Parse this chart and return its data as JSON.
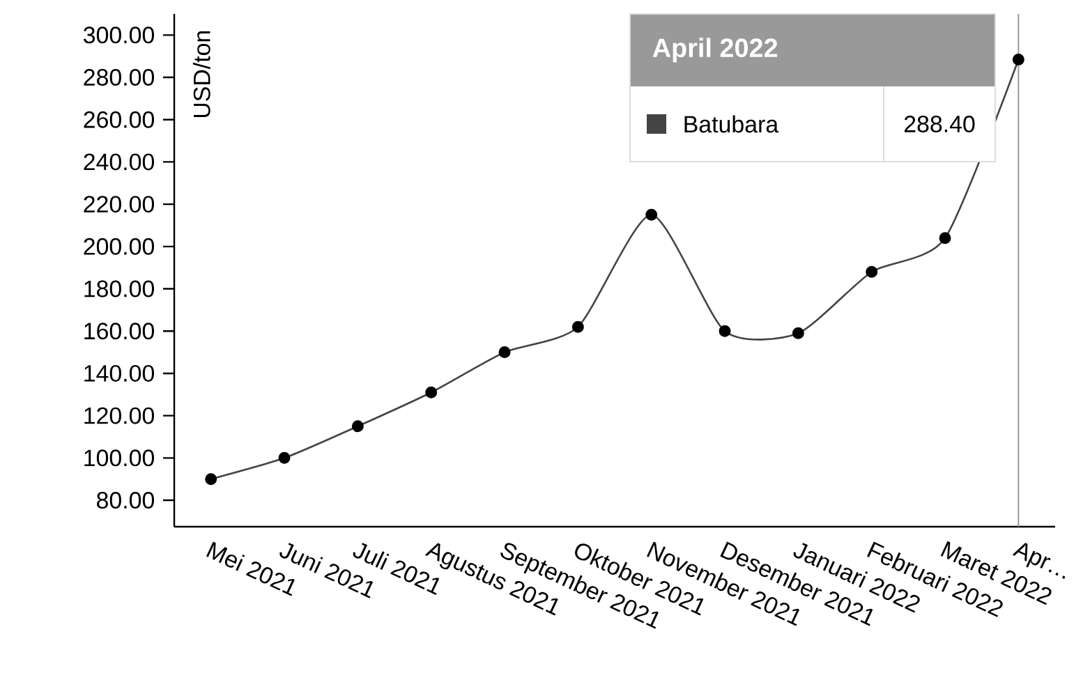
{
  "chart_data": {
    "type": "line",
    "categories": [
      "Mei 2021",
      "Juni 2021",
      "Juli 2021",
      "Agustus 2021",
      "September 2021",
      "Oktober 2021",
      "November 2021",
      "Desember 2021",
      "Januari 2022",
      "Februari 2022",
      "Maret 2022",
      "Apr…"
    ],
    "series": [
      {
        "name": "Batubara",
        "color": "#444444",
        "values": [
          90,
          100,
          115,
          131,
          150,
          162,
          215,
          160,
          159,
          188,
          204,
          288.4
        ],
        "value_labels": [
          null,
          null,
          null,
          null,
          null,
          null,
          null,
          null,
          null,
          null,
          null,
          "288.40"
        ]
      }
    ],
    "annotations": [
      "April 2022"
    ],
    "ylabel": "USD/ton",
    "ylim": [
      67.5,
      310
    ],
    "yticks": [
      {
        "value": 80,
        "label": "80.00"
      },
      {
        "value": 100,
        "label": "100.00"
      },
      {
        "value": 120,
        "label": "120.00"
      },
      {
        "value": 140,
        "label": "140.00"
      },
      {
        "value": 160,
        "label": "160.00"
      },
      {
        "value": 180,
        "label": "180.00"
      },
      {
        "value": 200,
        "label": "200.00"
      },
      {
        "value": 220,
        "label": "220.00"
      },
      {
        "value": 240,
        "label": "240.00"
      },
      {
        "value": 260,
        "label": "260.00"
      },
      {
        "value": 280,
        "label": "280.00"
      },
      {
        "value": 300,
        "label": "300.00"
      }
    ],
    "ref_lines": [
      {
        "axis": "x",
        "value": "Apr…",
        "color": "#999999"
      }
    ],
    "marker": "circle",
    "line_style": "solid",
    "legend": "top right",
    "grid": false
  }
}
